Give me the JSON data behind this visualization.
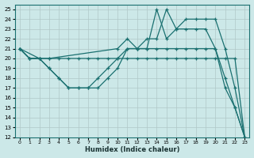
{
  "xlabel": "Humidex (Indice chaleur)",
  "bg_color": "#cce8e8",
  "line_color": "#1a7070",
  "grid_color": "#b0c8c8",
  "xlim": [
    -0.5,
    23.5
  ],
  "ylim": [
    12,
    25.5
  ],
  "xticks": [
    0,
    1,
    2,
    3,
    4,
    5,
    6,
    7,
    8,
    9,
    10,
    11,
    12,
    13,
    14,
    15,
    16,
    17,
    18,
    19,
    20,
    21,
    22,
    23
  ],
  "yticks": [
    12,
    13,
    14,
    15,
    16,
    17,
    18,
    19,
    20,
    21,
    22,
    23,
    24,
    25
  ],
  "lines": [
    {
      "x": [
        0,
        1,
        2,
        3,
        4,
        5,
        6,
        7,
        8,
        9,
        10,
        11,
        12,
        13,
        14,
        15,
        16,
        17,
        18,
        19,
        20,
        21,
        22,
        23
      ],
      "y": [
        21,
        20,
        20,
        20,
        20,
        20,
        20,
        20,
        20,
        20,
        20,
        20,
        20,
        20,
        20,
        20,
        20,
        20,
        20,
        20,
        20,
        20,
        20,
        12
      ]
    },
    {
      "x": [
        0,
        2,
        3,
        10,
        11,
        12,
        13,
        14,
        15,
        16,
        17,
        18,
        19,
        20,
        21,
        22,
        23
      ],
      "y": [
        21,
        20,
        20,
        21,
        22,
        21,
        22,
        22,
        25,
        23,
        24,
        24,
        24,
        24,
        21,
        17,
        12
      ]
    },
    {
      "x": [
        0,
        1,
        2,
        3,
        4,
        5,
        6,
        7,
        8,
        9,
        10,
        11,
        12,
        13,
        14,
        15,
        16,
        17,
        18,
        19,
        20,
        21,
        22,
        23
      ],
      "y": [
        21,
        20,
        20,
        19,
        18,
        17,
        17,
        17,
        17,
        18,
        19,
        21,
        21,
        21,
        25,
        22,
        23,
        23,
        23,
        23,
        21,
        17,
        15,
        12
      ]
    },
    {
      "x": [
        0,
        1,
        2,
        3,
        4,
        5,
        6,
        7,
        8,
        9,
        10,
        11,
        12,
        13,
        14,
        15,
        16,
        17,
        18,
        19,
        20,
        21,
        22,
        23
      ],
      "y": [
        21,
        20,
        20,
        19,
        18,
        17,
        17,
        17,
        18,
        19,
        20,
        21,
        21,
        21,
        21,
        21,
        21,
        21,
        21,
        21,
        21,
        18,
        15,
        12
      ]
    }
  ]
}
